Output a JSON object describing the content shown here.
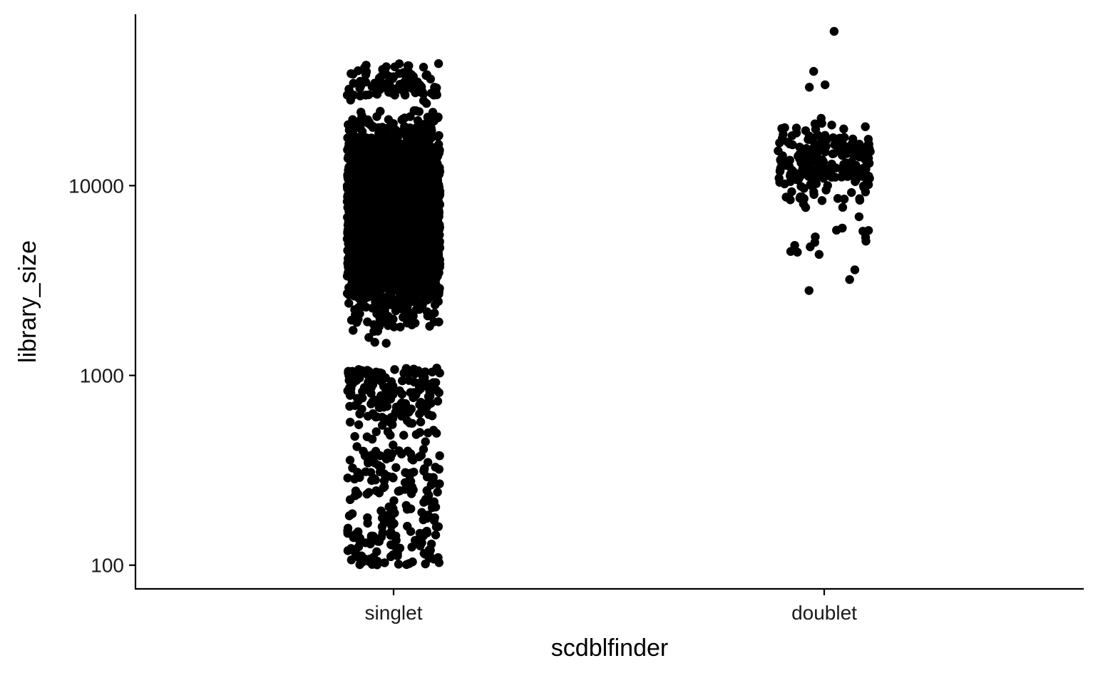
{
  "chart_data": {
    "type": "scatter",
    "style": "jitter-strip",
    "xlabel": "scdblfinder",
    "ylabel": "library_size",
    "categories": [
      "singlet",
      "doublet"
    ],
    "y_scale": "log10",
    "ylim": [
      75,
      80000
    ],
    "y_ticks": [
      {
        "value": 100,
        "label": "100"
      },
      {
        "value": 1000,
        "label": "1000"
      },
      {
        "value": 10000,
        "label": "10000"
      }
    ],
    "grid": false,
    "legend": "none",
    "point_color": "#000000",
    "series": [
      {
        "category": "singlet",
        "approx_count": 4000,
        "min": 100,
        "max": 44000,
        "dense_range": [
          1100,
          30000
        ],
        "sparse_range": [
          100,
          600
        ]
      },
      {
        "category": "doublet",
        "approx_count": 230,
        "min": 2800,
        "max": 65000,
        "dense_range": [
          6000,
          25000
        ],
        "outliers": [
          65000,
          40000,
          34000,
          33000,
          5100,
          3600,
          3200,
          2800
        ]
      }
    ]
  }
}
